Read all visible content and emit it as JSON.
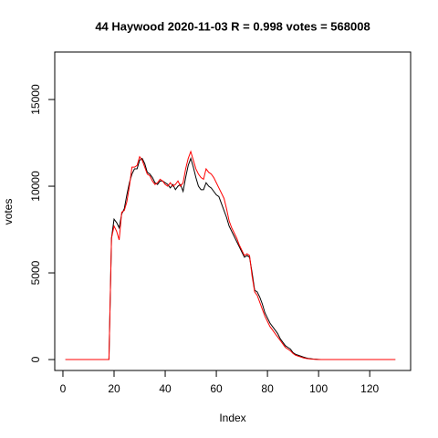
{
  "chart_data": {
    "type": "line",
    "title": "44 Haywood 2020-11-03 R = 0.998 votes = 568008",
    "x_label": "Index",
    "y_label": "votes",
    "x": [
      1,
      2,
      3,
      4,
      5,
      6,
      7,
      8,
      9,
      10,
      11,
      12,
      13,
      14,
      15,
      16,
      17,
      18,
      19,
      20,
      21,
      22,
      23,
      24,
      25,
      26,
      27,
      28,
      29,
      30,
      31,
      32,
      33,
      34,
      35,
      36,
      37,
      38,
      39,
      40,
      41,
      42,
      43,
      44,
      45,
      46,
      47,
      48,
      49,
      50,
      51,
      52,
      53,
      54,
      55,
      56,
      57,
      58,
      59,
      60,
      61,
      62,
      63,
      64,
      65,
      66,
      67,
      68,
      69,
      70,
      71,
      72,
      73,
      74,
      75,
      76,
      77,
      78,
      79,
      80,
      81,
      82,
      83,
      84,
      85,
      86,
      87,
      88,
      89,
      90,
      91,
      92,
      93,
      94,
      95,
      96,
      97,
      98,
      99,
      100,
      101,
      102,
      103,
      104,
      105,
      106,
      107,
      108,
      109,
      110,
      111,
      112,
      113,
      114,
      115,
      116,
      117,
      118,
      119,
      120,
      121,
      122,
      123,
      124,
      125,
      126,
      127,
      128,
      129,
      130
    ],
    "series": [
      {
        "color": "#000000",
        "values": [
          0,
          0,
          0,
          0,
          0,
          0,
          0,
          0,
          0,
          0,
          0,
          0,
          0,
          0,
          0,
          0,
          0,
          0,
          7000,
          8100,
          7900,
          7600,
          8400,
          8700,
          9500,
          10200,
          10700,
          11000,
          11000,
          11500,
          11600,
          11300,
          10800,
          10700,
          10500,
          10200,
          10100,
          10300,
          10300,
          10200,
          10100,
          9900,
          10100,
          9800,
          10000,
          10100,
          9700,
          10500,
          11200,
          11600,
          11100,
          10500,
          10000,
          9800,
          9800,
          10200,
          10000,
          9900,
          9700,
          9500,
          9400,
          9000,
          8600,
          8200,
          7700,
          7400,
          7100,
          6800,
          6500,
          6200,
          5900,
          6000,
          5900,
          5000,
          4000,
          3900,
          3600,
          3200,
          2700,
          2400,
          2100,
          1900,
          1700,
          1500,
          1200,
          1000,
          800,
          700,
          600,
          400,
          300,
          250,
          200,
          150,
          100,
          70,
          50,
          30,
          20,
          10,
          0,
          0,
          0,
          0,
          0,
          0,
          0,
          0,
          0,
          0,
          0,
          0,
          0,
          0,
          0,
          0,
          0,
          0,
          0,
          0,
          0,
          0,
          0,
          0,
          0,
          0,
          0,
          0,
          0,
          0
        ]
      },
      {
        "color": "#ff0000",
        "values": [
          0,
          0,
          0,
          0,
          0,
          0,
          0,
          0,
          0,
          0,
          0,
          0,
          0,
          0,
          0,
          0,
          0,
          0,
          7000,
          7700,
          7400,
          6900,
          8500,
          8600,
          9100,
          10000,
          11100,
          11100,
          11200,
          11700,
          11500,
          11100,
          10700,
          10600,
          10300,
          10100,
          10200,
          10400,
          10300,
          10100,
          10000,
          10200,
          10000,
          10100,
          10300,
          10000,
          10200,
          11000,
          11600,
          12000,
          11500,
          11000,
          10700,
          10500,
          10400,
          11000,
          10800,
          10700,
          10500,
          10200,
          9900,
          9600,
          9300,
          8700,
          8000,
          7600,
          7300,
          7000,
          6600,
          6300,
          6000,
          6100,
          6000,
          4800,
          3900,
          3700,
          3300,
          2900,
          2500,
          2200,
          1900,
          1700,
          1500,
          1300,
          1100,
          900,
          700,
          600,
          500,
          350,
          250,
          200,
          150,
          100,
          70,
          50,
          30,
          20,
          10,
          0,
          0,
          0,
          0,
          0,
          0,
          0,
          0,
          0,
          0,
          0,
          0,
          0,
          0,
          0,
          0,
          0,
          0,
          0,
          0,
          0,
          0,
          0,
          0,
          0,
          0,
          0,
          0,
          0,
          0,
          0
        ]
      }
    ],
    "xlim": [
      -3.2,
      136
    ],
    "ylim": [
      -630,
      17740
    ],
    "xticks": [
      0,
      20,
      40,
      60,
      80,
      100,
      120
    ],
    "yticks": [
      0,
      5000,
      10000,
      15000
    ]
  }
}
